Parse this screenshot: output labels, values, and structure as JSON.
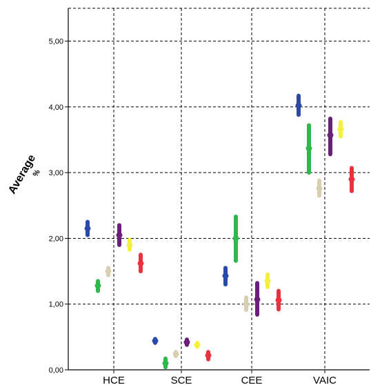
{
  "chart_data": {
    "type": "scatter",
    "ylabel": "Average",
    "ylabel_unit": "%",
    "xlabel": "",
    "categories": [
      "HCE",
      "SCE",
      "CEE",
      "VAIC"
    ],
    "yticks": [
      "0,00",
      "1,00",
      "2,00",
      "3,00",
      "4,00",
      "5,00"
    ],
    "ylim": [
      0,
      5.5
    ],
    "grid": true,
    "colors": [
      "#2b4aa8",
      "#2db84b",
      "#d8ceb0",
      "#6a1f7a",
      "#f5f03c",
      "#e8323c"
    ],
    "series": [
      {
        "color": "#2b4aa8",
        "values": [
          {
            "mean": 2.15,
            "low": 2.05,
            "high": 2.25
          },
          {
            "mean": 0.44,
            "low": 0.41,
            "high": 0.47
          },
          {
            "mean": 1.43,
            "low": 1.3,
            "high": 1.55
          },
          {
            "mean": 4.02,
            "low": 3.88,
            "high": 4.17
          }
        ]
      },
      {
        "color": "#2db84b",
        "values": [
          {
            "mean": 1.28,
            "low": 1.2,
            "high": 1.35
          },
          {
            "mean": 0.1,
            "low": 0.04,
            "high": 0.17
          },
          {
            "mean": 2.0,
            "low": 1.66,
            "high": 2.33
          },
          {
            "mean": 3.37,
            "low": 3.0,
            "high": 3.72
          }
        ]
      },
      {
        "color": "#d8ceb0",
        "values": [
          {
            "mean": 1.5,
            "low": 1.44,
            "high": 1.55
          },
          {
            "mean": 0.24,
            "low": 0.21,
            "high": 0.27
          },
          {
            "mean": 1.0,
            "low": 0.91,
            "high": 1.1
          },
          {
            "mean": 2.76,
            "low": 2.65,
            "high": 2.88
          }
        ]
      },
      {
        "color": "#6a1f7a",
        "values": [
          {
            "mean": 2.05,
            "low": 1.9,
            "high": 2.2
          },
          {
            "mean": 0.42,
            "low": 0.38,
            "high": 0.46
          },
          {
            "mean": 1.07,
            "low": 0.84,
            "high": 1.32
          },
          {
            "mean": 3.57,
            "low": 3.28,
            "high": 3.82
          }
        ]
      },
      {
        "color": "#f5f03c",
        "values": [
          {
            "mean": 1.9,
            "low": 1.83,
            "high": 1.98
          },
          {
            "mean": 0.38,
            "low": 0.35,
            "high": 0.41
          },
          {
            "mean": 1.35,
            "low": 1.26,
            "high": 1.45
          },
          {
            "mean": 3.66,
            "low": 3.55,
            "high": 3.77
          }
        ]
      },
      {
        "color": "#e8323c",
        "values": [
          {
            "mean": 1.62,
            "low": 1.5,
            "high": 1.75
          },
          {
            "mean": 0.22,
            "low": 0.16,
            "high": 0.27
          },
          {
            "mean": 1.06,
            "low": 0.92,
            "high": 1.2
          },
          {
            "mean": 2.9,
            "low": 2.72,
            "high": 3.07
          }
        ]
      }
    ]
  }
}
